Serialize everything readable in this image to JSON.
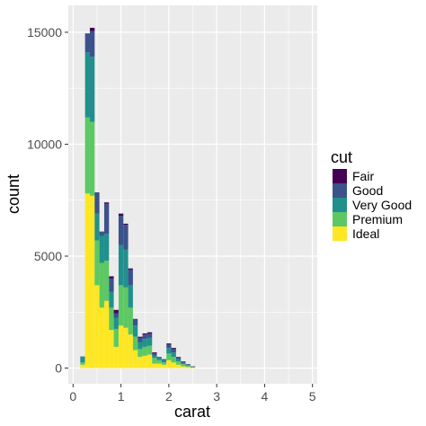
{
  "chart_data": {
    "type": "bar",
    "stacked": true,
    "xlabel": "carat",
    "ylabel": "count",
    "xlim": [
      -0.1,
      5.1
    ],
    "ylim": [
      -700,
      16200
    ],
    "xticks": [
      0,
      1,
      2,
      3,
      4,
      5
    ],
    "xtick_labels": [
      "0",
      "1",
      "2",
      "3",
      "4",
      "5"
    ],
    "yticks": [
      0,
      5000,
      10000,
      15000
    ],
    "ytick_labels": [
      "0",
      "5000",
      "10000",
      "15000"
    ],
    "legend": {
      "title": "cut",
      "position": "right",
      "entries": [
        "Fair",
        "Good",
        "Very Good",
        "Premium",
        "Ideal"
      ]
    },
    "colors": {
      "Fair": "#440154",
      "Good": "#3b528b",
      "Very Good": "#21908c",
      "Premium": "#5dc863",
      "Ideal": "#fde725",
      "panel_bg": "#ebebeb",
      "grid": "#ffffff"
    },
    "bin_width": 0.1,
    "bins": [
      0.2,
      0.3,
      0.4,
      0.5,
      0.6,
      0.7,
      0.8,
      0.9,
      1.0,
      1.1,
      1.2,
      1.3,
      1.4,
      1.5,
      1.6,
      1.7,
      1.8,
      1.9,
      2.0,
      2.1,
      2.2,
      2.3,
      2.4,
      2.5
    ],
    "series": [
      {
        "name": "Ideal",
        "values": [
          150,
          7800,
          7700,
          3700,
          2700,
          3000,
          1700,
          950,
          1900,
          1800,
          1500,
          800,
          500,
          550,
          600,
          200,
          200,
          150,
          350,
          250,
          150,
          80,
          50,
          20
        ]
      },
      {
        "name": "Premium",
        "values": [
          100,
          3400,
          3300,
          2000,
          2000,
          1800,
          1000,
          800,
          1800,
          1800,
          1200,
          600,
          350,
          400,
          400,
          250,
          150,
          100,
          300,
          250,
          150,
          100,
          60,
          20
        ]
      },
      {
        "name": "Very Good",
        "values": [
          250,
          2900,
          2900,
          1200,
          1200,
          1200,
          700,
          500,
          1800,
          1700,
          1000,
          500,
          300,
          350,
          350,
          100,
          100,
          100,
          250,
          200,
          100,
          50,
          40,
          20
        ]
      },
      {
        "name": "Good",
        "values": [
          20,
          850,
          1150,
          950,
          200,
          1350,
          600,
          200,
          1300,
          1100,
          700,
          300,
          200,
          200,
          200,
          100,
          50,
          50,
          150,
          150,
          80,
          50,
          30,
          10
        ]
      },
      {
        "name": "Fair",
        "values": [
          0,
          0,
          150,
          0,
          0,
          50,
          100,
          150,
          100,
          50,
          50,
          0,
          50,
          50,
          50,
          50,
          0,
          0,
          50,
          50,
          20,
          20,
          0,
          10
        ]
      }
    ]
  }
}
